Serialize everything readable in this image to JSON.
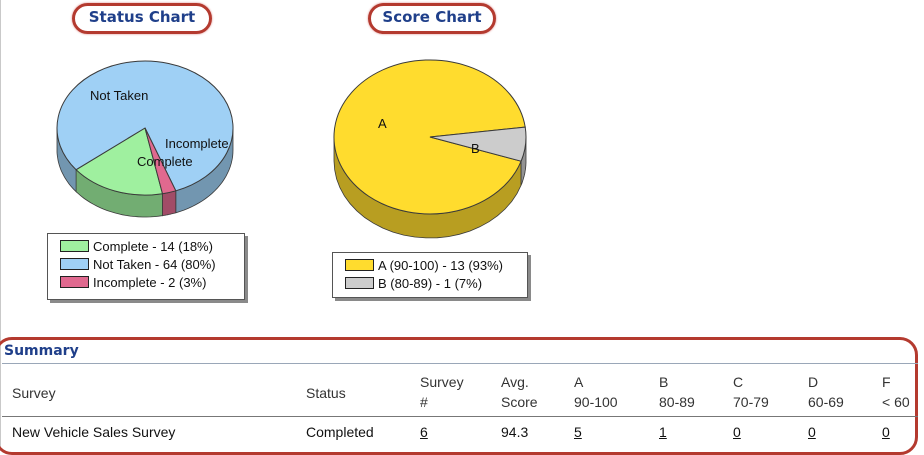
{
  "status_chart": {
    "title": "Status Chart",
    "labels": [
      {
        "text": "Not Taken"
      },
      {
        "text": "Incomplete"
      },
      {
        "text": "Complete"
      }
    ],
    "legend": [
      {
        "label": "Complete - 14 (18%)",
        "color": "#9ff09f"
      },
      {
        "label": "Not Taken - 64 (80%)",
        "color": "#9fd0f5"
      },
      {
        "label": "Incomplete - 2 (3%)",
        "color": "#e0698f"
      }
    ]
  },
  "score_chart": {
    "title": "Score Chart",
    "labels": [
      {
        "text": "A"
      },
      {
        "text": "B"
      }
    ],
    "legend": [
      {
        "label": "A (90-100) - 13 (93%)",
        "color": "#ffdc2e"
      },
      {
        "label": "B (80-89) - 1 (7%)",
        "color": "#cccccc"
      }
    ]
  },
  "chart_data": [
    {
      "type": "pie",
      "title": "Status Chart",
      "categories": [
        "Complete",
        "Not Taken",
        "Incomplete"
      ],
      "values": [
        14,
        64,
        2
      ],
      "percent": [
        18,
        80,
        3
      ],
      "colors": [
        "#9ff09f",
        "#9fd0f5",
        "#e0698f"
      ],
      "legend": "bottom"
    },
    {
      "type": "pie",
      "title": "Score Chart",
      "categories": [
        "A (90-100)",
        "B (80-89)"
      ],
      "values": [
        13,
        1
      ],
      "percent": [
        93,
        7
      ],
      "colors": [
        "#ffdc2e",
        "#cccccc"
      ],
      "legend": "bottom"
    }
  ],
  "summary": {
    "heading": "Summary",
    "columns": {
      "survey": "Survey",
      "status": "Status",
      "survey_num": [
        "Survey",
        "#"
      ],
      "avg": [
        "Avg.",
        "Score"
      ],
      "a": [
        "A",
        "90-100"
      ],
      "b": [
        "B",
        "80-89"
      ],
      "c": [
        "C",
        "70-79"
      ],
      "d": [
        "D",
        "60-69"
      ],
      "f": [
        "F",
        "< 60"
      ]
    },
    "row": {
      "survey": "New Vehicle Sales Survey",
      "status": "Completed",
      "survey_num": "6",
      "avg": "94.3",
      "a": "5",
      "b": "1",
      "c": "0",
      "d": "0",
      "f": "0"
    }
  }
}
